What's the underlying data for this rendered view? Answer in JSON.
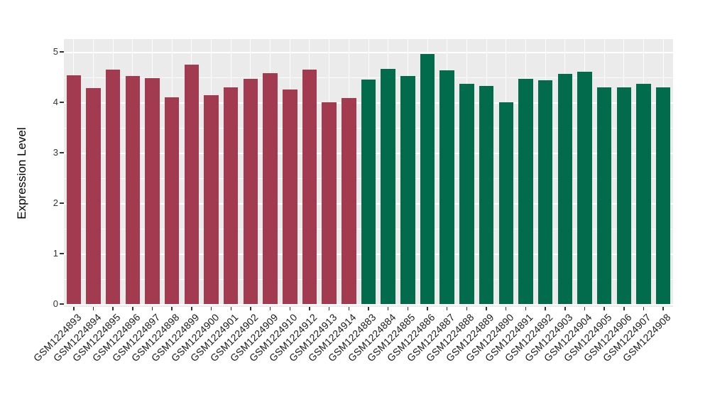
{
  "figure": {
    "background": "#FFFFFF",
    "panel_background": "#EBEBEB",
    "grid_color": "#FFFFFF",
    "axis_text_color": "#333333"
  },
  "chart_data": {
    "type": "bar",
    "title": "",
    "xlabel": "",
    "ylabel": "Expression Level",
    "ylim": [
      0,
      5.25
    ],
    "yticks": [
      0,
      1,
      2,
      3,
      4,
      5
    ],
    "grid": "horizontal major and minor white gridlines on gray panel, vertical major at category centers",
    "legend": "none",
    "groups": [
      {
        "name": "red",
        "color": "#A23B50"
      },
      {
        "name": "green",
        "color": "#026B4B"
      }
    ],
    "bars": [
      {
        "label": "GSM1224893",
        "value": 4.53,
        "group": "red"
      },
      {
        "label": "GSM1224894",
        "value": 4.28,
        "group": "red"
      },
      {
        "label": "GSM1224895",
        "value": 4.65,
        "group": "red"
      },
      {
        "label": "GSM1224896",
        "value": 4.52,
        "group": "red"
      },
      {
        "label": "GSM1224897",
        "value": 4.48,
        "group": "red"
      },
      {
        "label": "GSM1224898",
        "value": 4.1,
        "group": "red"
      },
      {
        "label": "GSM1224899",
        "value": 4.75,
        "group": "red"
      },
      {
        "label": "GSM1224900",
        "value": 4.14,
        "group": "red"
      },
      {
        "label": "GSM1224901",
        "value": 4.29,
        "group": "red"
      },
      {
        "label": "GSM1224902",
        "value": 4.47,
        "group": "red"
      },
      {
        "label": "GSM1224909",
        "value": 4.58,
        "group": "red"
      },
      {
        "label": "GSM1224910",
        "value": 4.25,
        "group": "red"
      },
      {
        "label": "GSM1224912",
        "value": 4.65,
        "group": "red"
      },
      {
        "label": "GSM1224913",
        "value": 4.0,
        "group": "red"
      },
      {
        "label": "GSM1224914",
        "value": 4.09,
        "group": "red"
      },
      {
        "label": "GSM1224883",
        "value": 4.45,
        "group": "green"
      },
      {
        "label": "GSM1224884",
        "value": 4.66,
        "group": "green"
      },
      {
        "label": "GSM1224885",
        "value": 4.52,
        "group": "green"
      },
      {
        "label": "GSM1224886",
        "value": 4.96,
        "group": "green"
      },
      {
        "label": "GSM1224887",
        "value": 4.63,
        "group": "green"
      },
      {
        "label": "GSM1224888",
        "value": 4.37,
        "group": "green"
      },
      {
        "label": "GSM1224889",
        "value": 4.33,
        "group": "green"
      },
      {
        "label": "GSM1224890",
        "value": 4.0,
        "group": "green"
      },
      {
        "label": "GSM1224891",
        "value": 4.46,
        "group": "green"
      },
      {
        "label": "GSM1224892",
        "value": 4.43,
        "group": "green"
      },
      {
        "label": "GSM1224903",
        "value": 4.56,
        "group": "green"
      },
      {
        "label": "GSM1224904",
        "value": 4.61,
        "group": "green"
      },
      {
        "label": "GSM1224905",
        "value": 4.3,
        "group": "green"
      },
      {
        "label": "GSM1224906",
        "value": 4.3,
        "group": "green"
      },
      {
        "label": "GSM1224907",
        "value": 4.37,
        "group": "green"
      },
      {
        "label": "GSM1224908",
        "value": 4.3,
        "group": "green"
      }
    ]
  }
}
